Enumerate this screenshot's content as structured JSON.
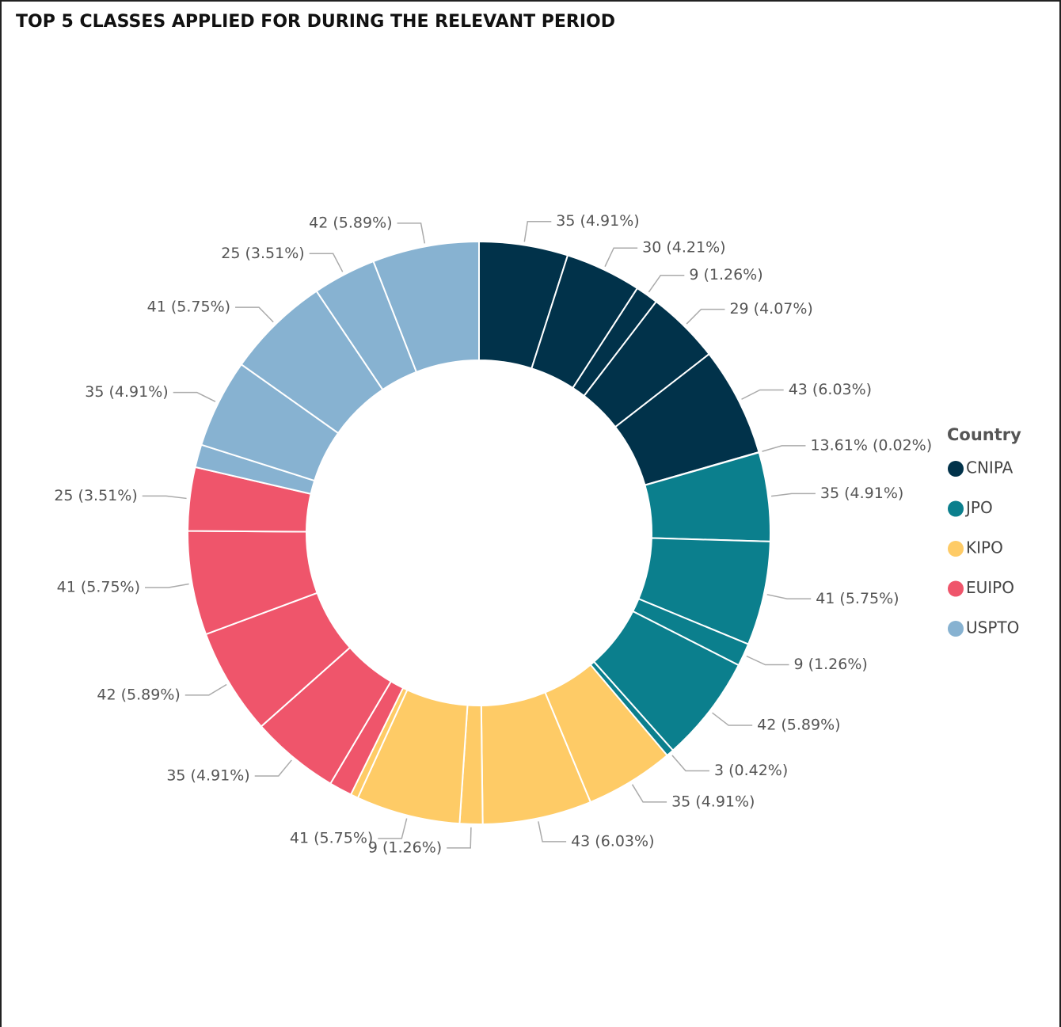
{
  "chart_data": {
    "type": "donut",
    "title": "TOP 5 CLASSES APPLIED FOR DURING THE RELEVANT PERIOD",
    "legend_title": "Country",
    "legend": "right",
    "series": [
      {
        "name": "CNIPA",
        "color": "#01324a",
        "values": [
          35,
          30,
          9,
          29,
          43,
          0.1361
        ],
        "value_labels": [
          "35 (4.91%)",
          "30 (4.21%)",
          "9 (1.26%)",
          "29 (4.07%)",
          "43 (6.03%)",
          "13.61% (0.02%)"
        ]
      },
      {
        "name": "JPO",
        "color": "#0b7f8d",
        "values": [
          35,
          41,
          9,
          42,
          3
        ],
        "value_labels": [
          "35 (4.91%)",
          "41 (5.75%)",
          "9 (1.26%)",
          "42 (5.89%)",
          "3 (0.42%)"
        ]
      },
      {
        "name": "KIPO",
        "color": "#fecb66",
        "values": [
          35,
          43,
          9,
          41,
          3
        ],
        "value_labels": [
          "35 (4.91%)",
          "43 (6.03%)",
          "9 (1.26%)",
          "41 (5.75%)",
          null
        ]
      },
      {
        "name": "EUIPO",
        "color": "#ef556b",
        "values": [
          9,
          35,
          42,
          41,
          25
        ],
        "value_labels": [
          null,
          "35 (4.91%)",
          "42 (5.89%)",
          "41 (5.75%)",
          "25 (3.51%)"
        ]
      },
      {
        "name": "USPTO",
        "color": "#87b2d1",
        "values": [
          9,
          35,
          41,
          25,
          42
        ],
        "value_labels": [
          null,
          "35 (4.91%)",
          "41 (5.75%)",
          "25 (3.51%)",
          "42 (5.89%)"
        ]
      }
    ]
  }
}
